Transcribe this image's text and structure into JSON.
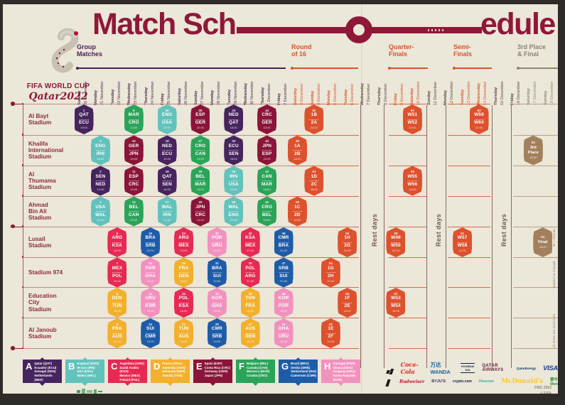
{
  "title": {
    "part1": "Match Sch",
    "part2": "edule"
  },
  "logo": {
    "line1": "FIFA WORLD CUP",
    "line2": "Qatar2022"
  },
  "sections": [
    {
      "id": "group",
      "line1": "Group",
      "line2": "Matches"
    },
    {
      "id": "r16",
      "line1": "Round",
      "line2": "of 16"
    },
    {
      "id": "qf",
      "line1": "Quarter-",
      "line2": "Finals"
    },
    {
      "id": "sf",
      "line1": "Semi-",
      "line2": "Finals"
    },
    {
      "id": "final",
      "line1": "3rd Place",
      "line2": "& Final"
    }
  ],
  "dates": [
    {
      "day": "Sunday",
      "date": "20 November",
      "phase": "group"
    },
    {
      "day": "Monday",
      "date": "21 November",
      "phase": "group"
    },
    {
      "day": "Tuesday",
      "date": "22 November",
      "phase": "group"
    },
    {
      "day": "Wednesday",
      "date": "23 November",
      "phase": "group"
    },
    {
      "day": "Thursday",
      "date": "24 November",
      "phase": "group"
    },
    {
      "day": "Friday",
      "date": "25 November",
      "phase": "group"
    },
    {
      "day": "Saturday",
      "date": "26 November",
      "phase": "group"
    },
    {
      "day": "Sunday",
      "date": "27 November",
      "phase": "group"
    },
    {
      "day": "Monday",
      "date": "28 November",
      "phase": "group"
    },
    {
      "day": "Tuesday",
      "date": "29 November",
      "phase": "group"
    },
    {
      "day": "Wednesday",
      "date": "30 November",
      "phase": "group"
    },
    {
      "day": "Thursday",
      "date": "1 December",
      "phase": "group"
    },
    {
      "day": "Friday",
      "date": "2 December",
      "phase": "group"
    },
    {
      "day": "Saturday",
      "date": "3 December",
      "phase": "ko"
    },
    {
      "day": "Sunday",
      "date": "4 December",
      "phase": "ko"
    },
    {
      "day": "Monday",
      "date": "5 December",
      "phase": "ko"
    },
    {
      "day": "Tuesday",
      "date": "6 December",
      "phase": "ko"
    },
    {
      "day": "Wednesday",
      "date": "7 December",
      "phase": "rest"
    },
    {
      "day": "Thursday",
      "date": "8 December",
      "phase": "rest"
    },
    {
      "day": "Friday",
      "date": "9 December",
      "phase": "ko"
    },
    {
      "day": "Saturday",
      "date": "10 December",
      "phase": "ko"
    },
    {
      "day": "Sunday",
      "date": "11 December",
      "phase": "rest"
    },
    {
      "day": "Monday",
      "date": "12 December",
      "phase": "rest"
    },
    {
      "day": "Tuesday",
      "date": "13 December",
      "phase": "ko"
    },
    {
      "day": "Wednesday",
      "date": "14 December",
      "phase": "ko"
    },
    {
      "day": "Thursday",
      "date": "15 December",
      "phase": "rest"
    },
    {
      "day": "Friday",
      "date": "16 December",
      "phase": "rest"
    },
    {
      "day": "Saturday",
      "date": "17 December",
      "phase": "fb"
    },
    {
      "day": "Sunday",
      "date": "18 December",
      "phase": "fb"
    }
  ],
  "stadiums": [
    "Al Bayt\nStadium",
    "Khalifa\nInternational\nStadium",
    "Al\nThumama\nStadium",
    "Ahmad\nBin Ali\nStadium",
    "Lusail\nStadium",
    "Stadium 974",
    "Education\nCity\nStadium",
    "Al Janoub\nStadium"
  ],
  "rest_days_label": "Rest days",
  "side_notes": [
    "W = Winner",
    "Subject to change",
    "All times are local time"
  ],
  "matches": [
    {
      "n": 1,
      "a": "QAT",
      "b": "ECU",
      "t": "19:00",
      "row": 0,
      "col": 0,
      "c": "A"
    },
    {
      "n": 9,
      "a": "MAR",
      "b": "CRO",
      "t": "13:00",
      "row": 0,
      "col": 3,
      "c": "F"
    },
    {
      "n": 20,
      "a": "ENG",
      "b": "USA",
      "t": "22:00",
      "row": 0,
      "col": 5,
      "c": "B"
    },
    {
      "n": 28,
      "a": "ESP",
      "b": "GER",
      "t": "22:00",
      "row": 0,
      "col": 7,
      "c": "E"
    },
    {
      "n": 34,
      "a": "NED",
      "b": "QAT",
      "t": "18:00",
      "row": 0,
      "col": 9,
      "c": "A"
    },
    {
      "n": 44,
      "a": "CRC",
      "b": "GER",
      "t": "22:00",
      "row": 0,
      "col": 11,
      "c": "E"
    },
    {
      "n": 52,
      "a": "1B",
      "b": "2A",
      "t": "22:00",
      "row": 0,
      "col": 14,
      "c": "KO"
    },
    {
      "n": 60,
      "a": "W51",
      "b": "W52",
      "t": "22:00",
      "row": 0,
      "col": 20,
      "c": "KO"
    },
    {
      "n": 62,
      "a": "W59",
      "b": "W60",
      "t": "22:00",
      "row": 0,
      "col": 24,
      "c": "KO"
    },
    {
      "n": 3,
      "a": "ENG",
      "b": "IRN",
      "t": "16:00",
      "row": 1,
      "col": 1,
      "c": "B"
    },
    {
      "n": 10,
      "a": "GER",
      "b": "JPN",
      "t": "16:00",
      "row": 1,
      "col": 3,
      "c": "E"
    },
    {
      "n": 19,
      "a": "NED",
      "b": "ECU",
      "t": "19:00",
      "row": 1,
      "col": 5,
      "c": "A"
    },
    {
      "n": 27,
      "a": "CRO",
      "b": "CAN",
      "t": "19:00",
      "row": 1,
      "col": 7,
      "c": "F"
    },
    {
      "n": 33,
      "a": "ECU",
      "b": "SEN",
      "t": "18:00",
      "row": 1,
      "col": 9,
      "c": "A"
    },
    {
      "n": 43,
      "a": "JPN",
      "b": "ESP",
      "t": "22:00",
      "row": 1,
      "col": 11,
      "c": "E"
    },
    {
      "n": 49,
      "a": "1A",
      "b": "2B",
      "t": "18:00",
      "row": 1,
      "col": 13,
      "c": "KO"
    },
    {
      "n": 63,
      "label": [
        "3rd",
        "Place"
      ],
      "t": "18:00",
      "row": 1,
      "col": 27,
      "c": "FB"
    },
    {
      "n": 2,
      "a": "SEN",
      "b": "NED",
      "t": "19:00",
      "row": 2,
      "col": 1,
      "c": "A"
    },
    {
      "n": 11,
      "a": "ESP",
      "b": "CRC",
      "t": "19:00",
      "row": 2,
      "col": 3,
      "c": "E"
    },
    {
      "n": 18,
      "a": "QAT",
      "b": "SEN",
      "t": "16:00",
      "row": 2,
      "col": 5,
      "c": "A"
    },
    {
      "n": 26,
      "a": "BEL",
      "b": "MAR",
      "t": "16:00",
      "row": 2,
      "col": 7,
      "c": "F"
    },
    {
      "n": 35,
      "a": "IRN",
      "b": "USA",
      "t": "22:00",
      "row": 2,
      "col": 9,
      "c": "B"
    },
    {
      "n": 42,
      "a": "CAN",
      "b": "MAR",
      "t": "18:00",
      "row": 2,
      "col": 11,
      "c": "F"
    },
    {
      "n": 51,
      "a": "1D",
      "b": "2C",
      "t": "18:00",
      "row": 2,
      "col": 14,
      "c": "KO"
    },
    {
      "n": 59,
      "a": "W55",
      "b": "W56",
      "t": "18:00",
      "row": 2,
      "col": 20,
      "c": "KO"
    },
    {
      "n": 4,
      "a": "USA",
      "b": "WAL",
      "t": "22:00",
      "row": 3,
      "col": 1,
      "c": "B"
    },
    {
      "n": 12,
      "a": "BEL",
      "b": "CAN",
      "t": "22:00",
      "row": 3,
      "col": 3,
      "c": "F"
    },
    {
      "n": 17,
      "a": "WAL",
      "b": "IRN",
      "t": "13:00",
      "row": 3,
      "col": 5,
      "c": "B"
    },
    {
      "n": 25,
      "a": "JPN",
      "b": "CRC",
      "t": "13:00",
      "row": 3,
      "col": 7,
      "c": "E"
    },
    {
      "n": 36,
      "a": "WAL",
      "b": "ENG",
      "t": "22:00",
      "row": 3,
      "col": 9,
      "c": "B"
    },
    {
      "n": 41,
      "a": "CRO",
      "b": "BEL",
      "t": "18:00",
      "row": 3,
      "col": 11,
      "c": "F"
    },
    {
      "n": 50,
      "a": "1C",
      "b": "2D",
      "t": "22:00",
      "row": 3,
      "col": 13,
      "c": "KO"
    },
    {
      "n": 5,
      "a": "ARG",
      "b": "KSA",
      "t": "13:00",
      "row": 4,
      "col": 2,
      "c": "C"
    },
    {
      "n": 16,
      "a": "BRA",
      "b": "SRB",
      "t": "22:00",
      "row": 4,
      "col": 4,
      "c": "G"
    },
    {
      "n": 24,
      "a": "ARG",
      "b": "MEX",
      "t": "22:00",
      "row": 4,
      "col": 6,
      "c": "C"
    },
    {
      "n": 32,
      "a": "POR",
      "b": "URU",
      "t": "22:00",
      "row": 4,
      "col": 8,
      "c": "H"
    },
    {
      "n": 40,
      "a": "KSA",
      "b": "MEX",
      "t": "22:00",
      "row": 4,
      "col": 10,
      "c": "C"
    },
    {
      "n": 48,
      "a": "CMR",
      "b": "BRA",
      "t": "22:00",
      "row": 4,
      "col": 12,
      "c": "G"
    },
    {
      "n": 56,
      "a": "1H",
      "b": "2G",
      "t": "22:00",
      "row": 4,
      "col": 16,
      "c": "KO"
    },
    {
      "n": 58,
      "a": "W49",
      "b": "W50",
      "t": "22:00",
      "row": 4,
      "col": 19,
      "c": "KO"
    },
    {
      "n": 61,
      "a": "W57",
      "b": "W58",
      "t": "22:00",
      "row": 4,
      "col": 23,
      "c": "KO"
    },
    {
      "n": 64,
      "label": [
        "Final"
      ],
      "t": "18:00",
      "row": 4,
      "col": 28,
      "c": "FB"
    },
    {
      "n": 7,
      "a": "MEX",
      "b": "POL",
      "t": "19:00",
      "row": 5,
      "col": 2,
      "c": "C"
    },
    {
      "n": 15,
      "a": "POR",
      "b": "GHA",
      "t": "19:00",
      "row": 5,
      "col": 4,
      "c": "H"
    },
    {
      "n": 23,
      "a": "FRA",
      "b": "DEN",
      "t": "19:00",
      "row": 5,
      "col": 6,
      "c": "D"
    },
    {
      "n": 31,
      "a": "BRA",
      "b": "SUI",
      "t": "19:00",
      "row": 5,
      "col": 8,
      "c": "G"
    },
    {
      "n": 39,
      "a": "POL",
      "b": "ARG",
      "t": "22:00",
      "row": 5,
      "col": 10,
      "c": "C"
    },
    {
      "n": 47,
      "a": "SRB",
      "b": "SUI",
      "t": "22:00",
      "row": 5,
      "col": 12,
      "c": "G"
    },
    {
      "n": 54,
      "a": "1G",
      "b": "2H",
      "t": "22:00",
      "row": 5,
      "col": 15,
      "c": "KO"
    },
    {
      "n": 6,
      "a": "DEN",
      "b": "TUN",
      "t": "16:00",
      "row": 6,
      "col": 2,
      "c": "D"
    },
    {
      "n": 14,
      "a": "URU",
      "b": "KOR",
      "t": "16:00",
      "row": 6,
      "col": 4,
      "c": "H"
    },
    {
      "n": 22,
      "a": "POL",
      "b": "KSA",
      "t": "16:00",
      "row": 6,
      "col": 6,
      "c": "C"
    },
    {
      "n": 30,
      "a": "KOR",
      "b": "GHA",
      "t": "16:00",
      "row": 6,
      "col": 8,
      "c": "H"
    },
    {
      "n": 38,
      "a": "TUN",
      "b": "FRA",
      "t": "18:00",
      "row": 6,
      "col": 10,
      "c": "D"
    },
    {
      "n": 46,
      "a": "KOR",
      "b": "POR",
      "t": "18:00",
      "row": 6,
      "col": 12,
      "c": "H"
    },
    {
      "n": 55,
      "a": "1F",
      "b": "2E",
      "t": "18:00",
      "row": 6,
      "col": 16,
      "c": "KO"
    },
    {
      "n": 57,
      "a": "W53",
      "b": "W54",
      "t": "18:00",
      "row": 6,
      "col": 19,
      "c": "KO"
    },
    {
      "n": 8,
      "a": "FRA",
      "b": "AUS",
      "t": "22:00",
      "row": 7,
      "col": 2,
      "c": "D"
    },
    {
      "n": 13,
      "a": "SUI",
      "b": "CMR",
      "t": "13:00",
      "row": 7,
      "col": 4,
      "c": "G"
    },
    {
      "n": 21,
      "a": "TUN",
      "b": "AUS",
      "t": "13:00",
      "row": 7,
      "col": 6,
      "c": "D"
    },
    {
      "n": 29,
      "a": "CMR",
      "b": "SRB",
      "t": "13:00",
      "row": 7,
      "col": 8,
      "c": "G"
    },
    {
      "n": 37,
      "a": "AUS",
      "b": "DEN",
      "t": "18:00",
      "row": 7,
      "col": 10,
      "c": "D"
    },
    {
      "n": 45,
      "a": "GHA",
      "b": "URU",
      "t": "18:00",
      "row": 7,
      "col": 12,
      "c": "H"
    },
    {
      "n": 53,
      "a": "1E",
      "b": "2F",
      "t": "18:00",
      "row": 7,
      "col": 15,
      "c": "KO"
    }
  ],
  "groups": [
    {
      "letter": "A",
      "teams": [
        "Qatar (QAT)",
        "Ecuador (ECU)",
        "Senegal (SEN)",
        "Netherlands (NED)"
      ]
    },
    {
      "letter": "B",
      "teams": [
        "England (ENG)",
        "IR Iran (IRN)",
        "USA (USA)",
        "Wales (WAL)"
      ]
    },
    {
      "letter": "C",
      "teams": [
        "Argentina (ARG)",
        "Saudi Arabia (KSA)",
        "Mexico (MEX)",
        "Poland (POL)"
      ]
    },
    {
      "letter": "D",
      "teams": [
        "France (FRA)",
        "Australia (AUS)",
        "Denmark (DEN)",
        "Tunisia (TUN)"
      ]
    },
    {
      "letter": "E",
      "teams": [
        "Spain (ESP)",
        "Costa Rica (CRC)",
        "Germany (GER)",
        "Japan (JPN)"
      ]
    },
    {
      "letter": "F",
      "teams": [
        "Belgium (BEL)",
        "Canada (CAN)",
        "Morocco (MAR)",
        "Croatia (CRO)"
      ]
    },
    {
      "letter": "G",
      "teams": [
        "Brazil (BRA)",
        "Serbia (SRB)",
        "Switzerland (SUI)",
        "Cameroon (CMR)"
      ]
    },
    {
      "letter": "H",
      "teams": [
        "Portugal (POR)",
        "Ghana (GHA)",
        "Uruguay (URU)",
        "Korea Republic (KOR)"
      ]
    }
  ],
  "sponsors_row1": [
    "adidas",
    "Coca-Cola",
    "万达 WANDA",
    "HYUNDAI KIA",
    "QATAR AIRWAYS",
    "QatarEnergy",
    "VISA"
  ],
  "sponsors_row2": [
    "Budweiser",
    "BYJU'S",
    "crypto.com",
    "Hisense",
    "McDonald's",
    "蒙牛 Mengniu",
    "vivo"
  ],
  "footer": [
    "FWC 2022",
    "© FIFA"
  ],
  "colors": {
    "A": "#46245E",
    "B": "#62C2BC",
    "C": "#E62A53",
    "D": "#F2B02C",
    "E": "#8A1538",
    "F": "#2BA459",
    "G": "#1E5CA8",
    "H": "#F291BE",
    "KO": "#DD512D",
    "FB": "#A3805C",
    "accent": "#8F1838",
    "group_header": "#4A2158",
    "orange": "#D4552E",
    "tan": "#8F8672",
    "date_group": "#4C2749",
    "date_rest": "#5D4037",
    "background": "#EBE7D9"
  }
}
